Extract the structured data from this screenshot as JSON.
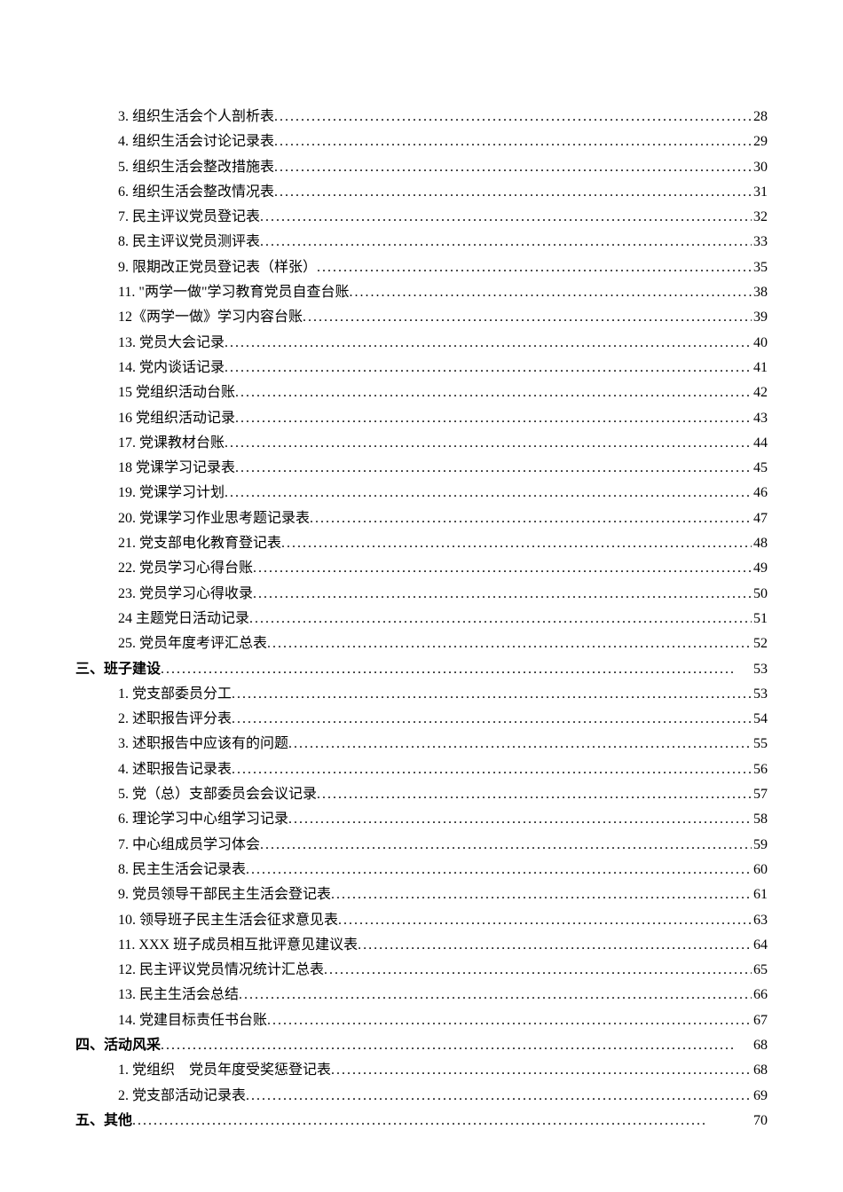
{
  "entries": [
    {
      "level": 2,
      "label": "3. 组织生活会个人剖析表",
      "page": "28",
      "bold": false
    },
    {
      "level": 2,
      "label": "4. 组织生活会讨论记录表",
      "page": "29",
      "bold": false
    },
    {
      "level": 2,
      "label": "5. 组织生活会整改措施表",
      "page": "30",
      "bold": false
    },
    {
      "level": 2,
      "label": "6. 组织生活会整改情况表",
      "page": "31",
      "bold": false
    },
    {
      "level": 2,
      "label": "7. 民主评议党员登记表",
      "page": "32",
      "bold": false
    },
    {
      "level": 2,
      "label": "8. 民主评议党员测评表",
      "page": "33",
      "bold": false
    },
    {
      "level": 2,
      "label": "9. 限期改正党员登记表（样张）",
      "page": "35",
      "bold": false
    },
    {
      "level": 2,
      "label": "11. \"两学一做\"学习教育党员自查台账",
      "page": "38",
      "bold": false
    },
    {
      "level": 2,
      "label": "12《两学一做》学习内容台账",
      "page": "39",
      "bold": false
    },
    {
      "level": 2,
      "label": "13. 党员大会记录",
      "page": "40",
      "bold": false
    },
    {
      "level": 2,
      "label": "14. 党内谈话记录",
      "page": "41",
      "bold": false
    },
    {
      "level": 2,
      "label": "15 党组织活动台账",
      "page": "42",
      "bold": false
    },
    {
      "level": 2,
      "label": "16 党组织活动记录",
      "page": "43",
      "bold": false
    },
    {
      "level": 2,
      "label": "17. 党课教材台账",
      "page": "44",
      "bold": false
    },
    {
      "level": 2,
      "label": "18 党课学习记录表",
      "page": "45",
      "bold": false
    },
    {
      "level": 2,
      "label": "19. 党课学习计划",
      "page": "46",
      "bold": false
    },
    {
      "level": 2,
      "label": "20. 党课学习作业思考题记录表",
      "page": "47",
      "bold": false
    },
    {
      "level": 2,
      "label": "21. 党支部电化教育登记表",
      "page": "48",
      "bold": false
    },
    {
      "level": 2,
      "label": "22. 党员学习心得台账",
      "page": "49",
      "bold": false
    },
    {
      "level": 2,
      "label": "23. 党员学习心得收录",
      "page": "50",
      "bold": false
    },
    {
      "level": 2,
      "label": "24 主题党日活动记录",
      "page": "51",
      "bold": false
    },
    {
      "level": 2,
      "label": "25. 党员年度考评汇总表",
      "page": "52",
      "bold": false
    },
    {
      "level": 1,
      "label": "三、班子建设",
      "page": "53",
      "bold": true
    },
    {
      "level": 2,
      "label": "1. 党支部委员分工",
      "page": "53",
      "bold": false
    },
    {
      "level": 2,
      "label": "2. 述职报告评分表",
      "page": "54",
      "bold": false
    },
    {
      "level": 2,
      "label": "3. 述职报告中应该有的问题",
      "page": "55",
      "bold": false
    },
    {
      "level": 2,
      "label": "4. 述职报告记录表",
      "page": "56",
      "bold": false
    },
    {
      "level": 2,
      "label": "5. 党（总）支部委员会会议记录",
      "page": "57",
      "bold": false
    },
    {
      "level": 2,
      "label": "6. 理论学习中心组学习记录",
      "page": "58",
      "bold": false
    },
    {
      "level": 2,
      "label": "7. 中心组成员学习体会",
      "page": "59",
      "bold": false
    },
    {
      "level": 2,
      "label": "8. 民主生活会记录表",
      "page": "60",
      "bold": false
    },
    {
      "level": 2,
      "label": "9. 党员领导干部民主生活会登记表",
      "page": "61",
      "bold": false
    },
    {
      "level": 2,
      "label": "10. 领导班子民主生活会征求意见表",
      "page": "63",
      "bold": false
    },
    {
      "level": 2,
      "label": "11. XXX 班子成员相互批评意见建议表",
      "page": "64",
      "bold": false
    },
    {
      "level": 2,
      "label": "12. 民主评议党员情况统计汇总表",
      "page": "65",
      "bold": false
    },
    {
      "level": 2,
      "label": "13. 民主生活会总结",
      "page": "66",
      "bold": false
    },
    {
      "level": 2,
      "label": "14. 党建目标责任书台账",
      "page": "67",
      "bold": false
    },
    {
      "level": 1,
      "label": "四、活动风采",
      "page": "68",
      "bold": true
    },
    {
      "level": 2,
      "label": "1. 党组织　党员年度受奖惩登记表",
      "page": "68",
      "bold": false
    },
    {
      "level": 2,
      "label": "2. 党支部活动记录表",
      "page": "69",
      "bold": false
    },
    {
      "level": 1,
      "label": "五、其他",
      "page": "70",
      "bold": true
    }
  ]
}
